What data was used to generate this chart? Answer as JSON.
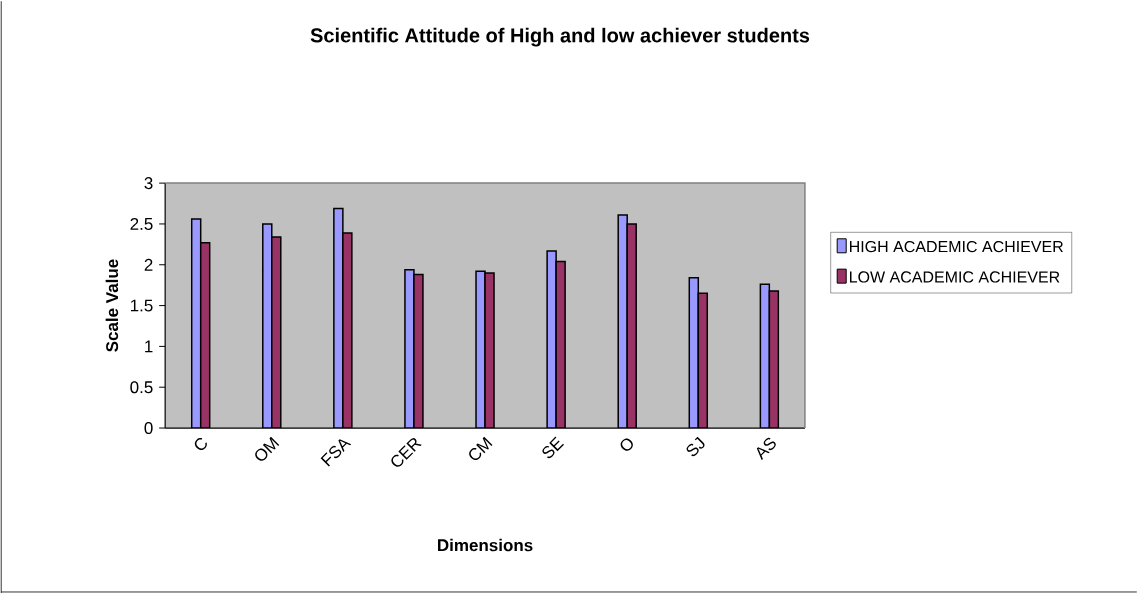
{
  "chart_data": {
    "type": "bar",
    "title": "Scientific Attitude of High and low achiever students",
    "xlabel": "Dimensions",
    "ylabel": "Scale Value",
    "categories": [
      "C",
      "OM",
      "FSA",
      "CER",
      "CM",
      "SE",
      "O",
      "SJ",
      "AS"
    ],
    "series": [
      {
        "name": "HIGH ACADEMIC ACHIEVER",
        "color": "#9999ff",
        "values": [
          2.56,
          2.5,
          2.69,
          1.94,
          1.92,
          2.17,
          2.61,
          1.84,
          1.76
        ]
      },
      {
        "name": "LOW ACADEMIC ACHIEVER",
        "color": "#993366",
        "values": [
          2.27,
          2.34,
          2.39,
          1.88,
          1.9,
          2.04,
          2.5,
          1.65,
          1.68
        ]
      }
    ],
    "ylim": [
      0,
      3
    ],
    "yticks": [
      0,
      0.5,
      1,
      1.5,
      2,
      2.5,
      3
    ],
    "legend": "right"
  }
}
